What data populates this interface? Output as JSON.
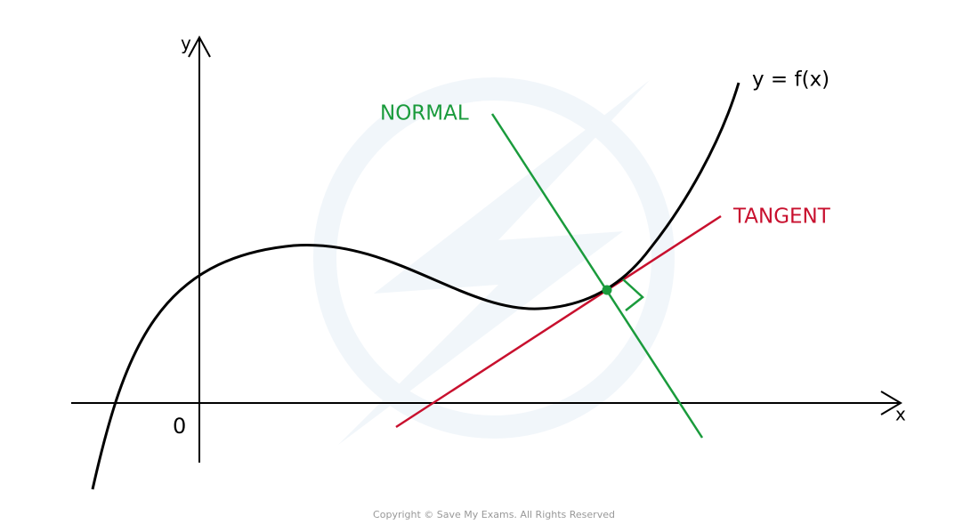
{
  "labels": {
    "y_axis": "y",
    "x_axis": "x",
    "origin": "0",
    "curve": "y = f(x)",
    "normal": "NORMAL",
    "tangent": "TANGENT"
  },
  "footer": "Copyright © Save My Exams. All Rights Reserved"
}
